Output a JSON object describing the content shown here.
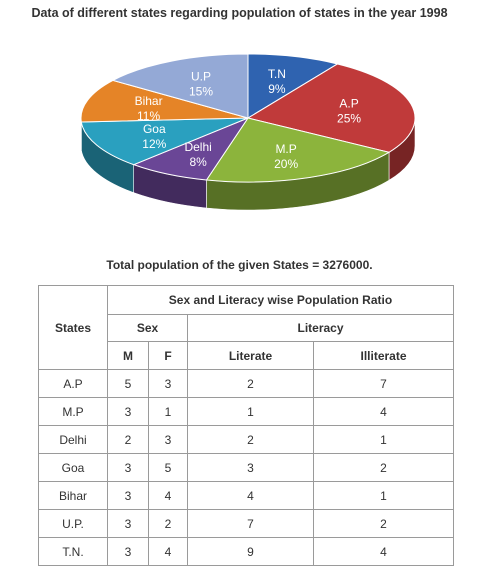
{
  "page": {
    "title": "Data of different states regarding population of states in the year 1998",
    "total_text": "Total population of the given States = 3276000."
  },
  "chart_data": [
    {
      "type": "pie",
      "title": "Data of different states regarding population of states in the year 1998",
      "slices": [
        {
          "label": "T.N",
          "value": 9,
          "text": "9%",
          "color": "#2f63b0"
        },
        {
          "label": "A.P",
          "value": 25,
          "text": "25%",
          "color": "#c03a3a"
        },
        {
          "label": "M.P",
          "value": 20,
          "text": "20%",
          "color": "#8cb43c"
        },
        {
          "label": "Delhi",
          "value": 8,
          "text": "8%",
          "color": "#6a4696"
        },
        {
          "label": "Goa",
          "value": 12,
          "text": "12%",
          "color": "#2aa0bf"
        },
        {
          "label": "Bihar",
          "value": 11,
          "text": "11%",
          "color": "#e58427"
        },
        {
          "label": "U.P",
          "value": 15,
          "text": "15%",
          "color": "#94a9d6"
        }
      ]
    },
    {
      "type": "table",
      "title": "Sex and Literacy wise Population Ratio",
      "header": {
        "states": "States",
        "group": "Sex and Literacy wise Population Ratio",
        "sex": "Sex",
        "literacy": "Literacy",
        "m": "M",
        "f": "F",
        "literate": "Literate",
        "illiterate": "Illiterate"
      },
      "rows": [
        {
          "state": "A.P",
          "m": "5",
          "f": "3",
          "literate": "2",
          "illiterate": "7"
        },
        {
          "state": "M.P",
          "m": "3",
          "f": "1",
          "literate": "1",
          "illiterate": "4"
        },
        {
          "state": "Delhi",
          "m": "2",
          "f": "3",
          "literate": "2",
          "illiterate": "1"
        },
        {
          "state": "Goa",
          "m": "3",
          "f": "5",
          "literate": "3",
          "illiterate": "2"
        },
        {
          "state": "Bihar",
          "m": "3",
          "f": "4",
          "literate": "4",
          "illiterate": "1"
        },
        {
          "state": "U.P.",
          "m": "3",
          "f": "2",
          "literate": "7",
          "illiterate": "2"
        },
        {
          "state": "T.N.",
          "m": "3",
          "f": "4",
          "literate": "9",
          "illiterate": "4"
        }
      ]
    }
  ]
}
